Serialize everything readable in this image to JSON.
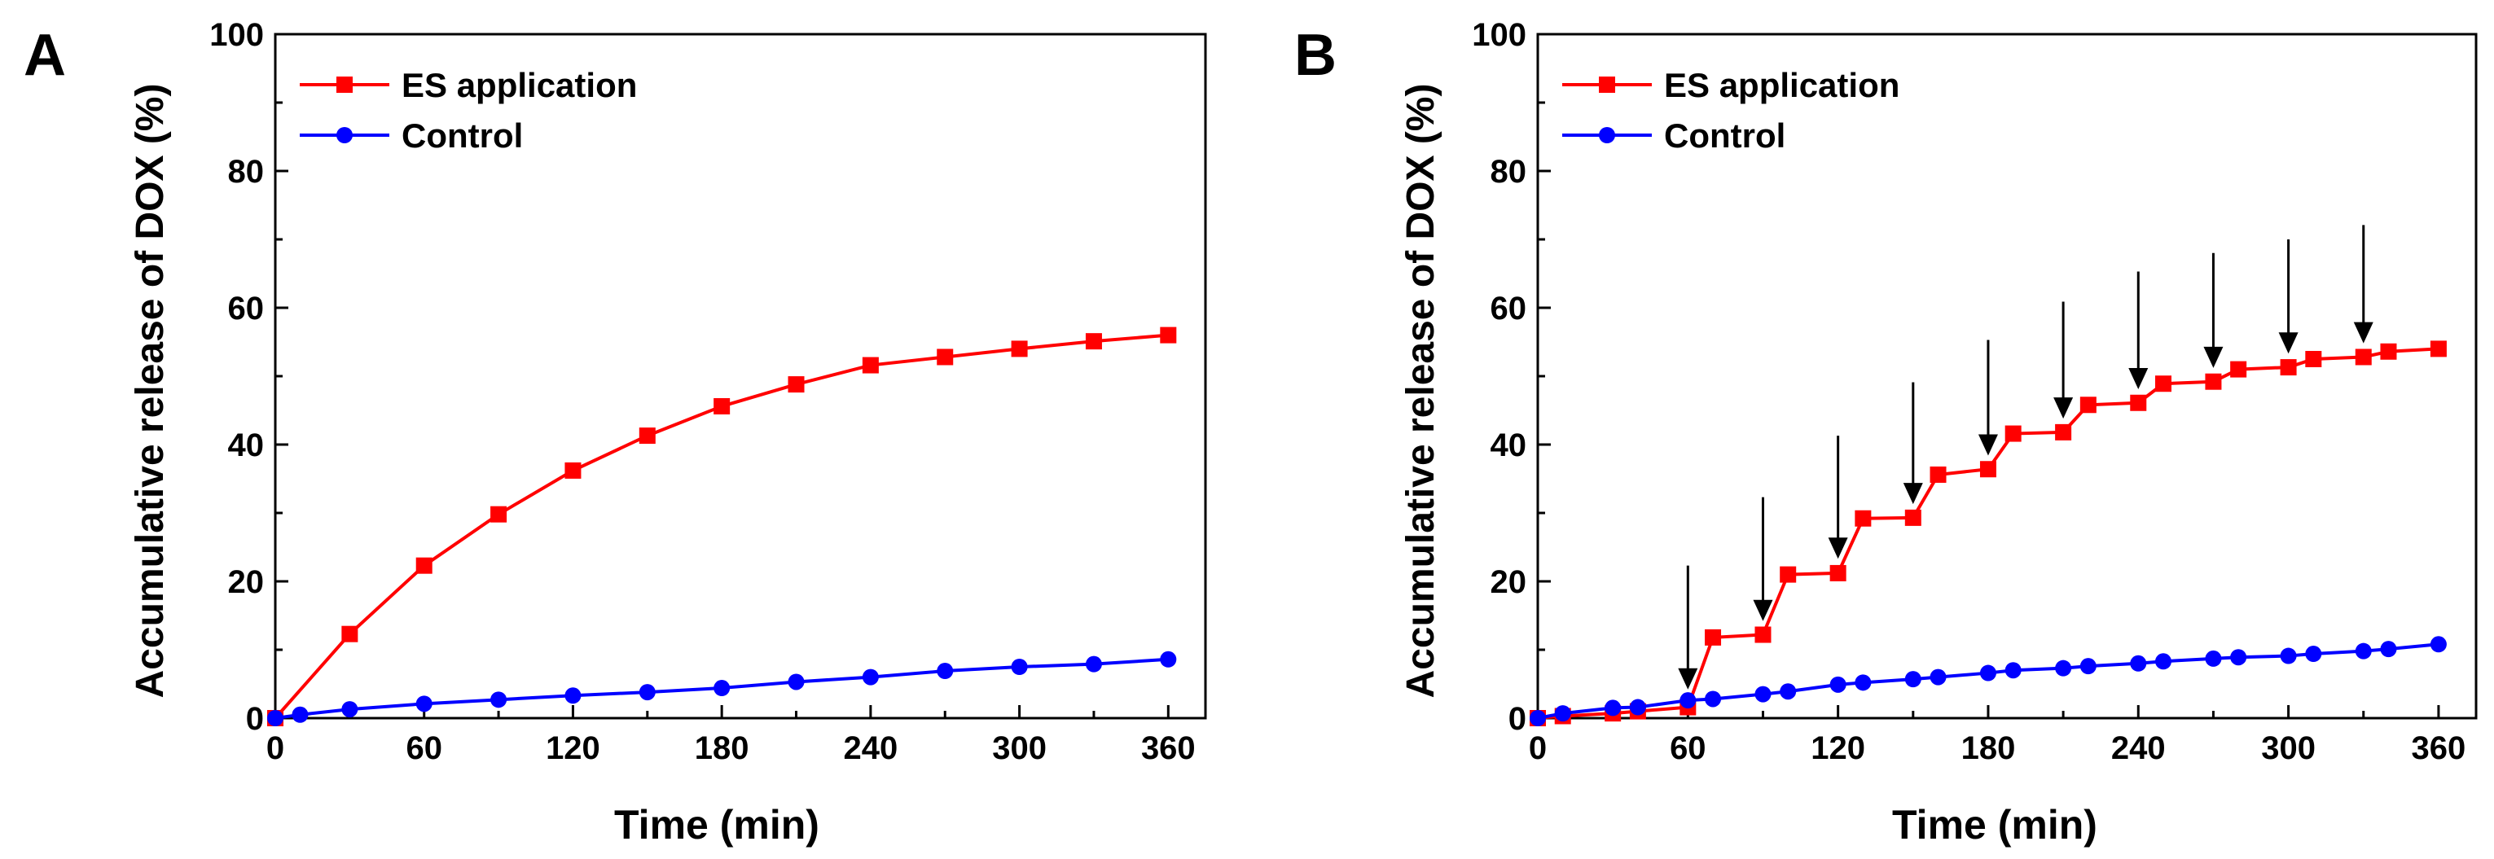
{
  "chart_data": [
    {
      "panel_label": "A",
      "type": "line",
      "xlabel": "Time (min)",
      "ylabel": "Accumulative release of DOX (%)",
      "xlim": [
        0,
        375
      ],
      "ylim": [
        0,
        100
      ],
      "xticks": [
        0,
        60,
        120,
        180,
        240,
        300,
        360
      ],
      "yticks": [
        0,
        20,
        40,
        60,
        80,
        100
      ],
      "legend_position": "top-left",
      "series": [
        {
          "name": "ES application",
          "color": "#ff0000",
          "marker": "square",
          "x": [
            0,
            30,
            60,
            90,
            120,
            150,
            180,
            210,
            240,
            270,
            300,
            330,
            360
          ],
          "y": [
            0,
            12.3,
            22.3,
            29.8,
            36.2,
            41.3,
            45.6,
            48.8,
            51.6,
            52.8,
            54.0,
            55.1,
            56.0
          ]
        },
        {
          "name": "Control",
          "color": "#0000ff",
          "marker": "circle",
          "x": [
            0,
            10,
            30,
            60,
            90,
            120,
            150,
            180,
            210,
            240,
            270,
            300,
            330,
            360
          ],
          "y": [
            0,
            0.5,
            1.3,
            2.1,
            2.7,
            3.3,
            3.8,
            4.4,
            5.3,
            6.0,
            6.9,
            7.5,
            7.9,
            8.6
          ]
        }
      ],
      "arrows_at": []
    },
    {
      "panel_label": "B",
      "type": "line",
      "xlabel": "Time (min)",
      "ylabel": "Accumulative release of DOX (%)",
      "xlim": [
        0,
        375
      ],
      "ylim": [
        0,
        100
      ],
      "xticks": [
        0,
        60,
        120,
        180,
        240,
        300,
        360
      ],
      "yticks": [
        0,
        20,
        40,
        60,
        80,
        100
      ],
      "legend_position": "top-left",
      "series": [
        {
          "name": "ES application",
          "color": "#ff0000",
          "marker": "square",
          "x": [
            0,
            10,
            30,
            40,
            60,
            70,
            90,
            100,
            120,
            130,
            150,
            160,
            180,
            190,
            210,
            220,
            240,
            250,
            270,
            280,
            300,
            310,
            330,
            340,
            360
          ],
          "y": [
            0,
            0.3,
            0.7,
            1.0,
            1.6,
            11.8,
            12.2,
            21.0,
            21.2,
            29.2,
            29.3,
            35.6,
            36.4,
            41.6,
            41.8,
            45.8,
            46.1,
            48.9,
            49.2,
            51.0,
            51.3,
            52.5,
            52.8,
            53.6,
            54.0
          ]
        },
        {
          "name": "Control",
          "color": "#0000ff",
          "marker": "circle",
          "x": [
            0,
            10,
            30,
            40,
            60,
            70,
            90,
            100,
            120,
            130,
            150,
            160,
            180,
            190,
            210,
            220,
            240,
            250,
            270,
            280,
            300,
            310,
            330,
            340,
            360
          ],
          "y": [
            0,
            0.7,
            1.5,
            1.6,
            2.6,
            2.8,
            3.5,
            3.9,
            4.9,
            5.2,
            5.7,
            6.0,
            6.6,
            7.0,
            7.3,
            7.6,
            8.0,
            8.3,
            8.7,
            8.9,
            9.1,
            9.4,
            9.8,
            10.1,
            10.8
          ]
        }
      ],
      "arrows_at": [
        {
          "x": 60,
          "y_from": 22.3,
          "y_to": 4.2
        },
        {
          "x": 90,
          "y_from": 32.3,
          "y_to": 14.2
        },
        {
          "x": 120,
          "y_from": 41.3,
          "y_to": 23.3
        },
        {
          "x": 150,
          "y_from": 49.1,
          "y_to": 31.3
        },
        {
          "x": 180,
          "y_from": 55.3,
          "y_to": 38.4
        },
        {
          "x": 210,
          "y_from": 60.9,
          "y_to": 43.8
        },
        {
          "x": 240,
          "y_from": 65.3,
          "y_to": 48.1
        },
        {
          "x": 270,
          "y_from": 68.0,
          "y_to": 51.2
        },
        {
          "x": 300,
          "y_from": 70.0,
          "y_to": 53.3
        },
        {
          "x": 330,
          "y_from": 72.1,
          "y_to": 54.8
        }
      ]
    }
  ]
}
